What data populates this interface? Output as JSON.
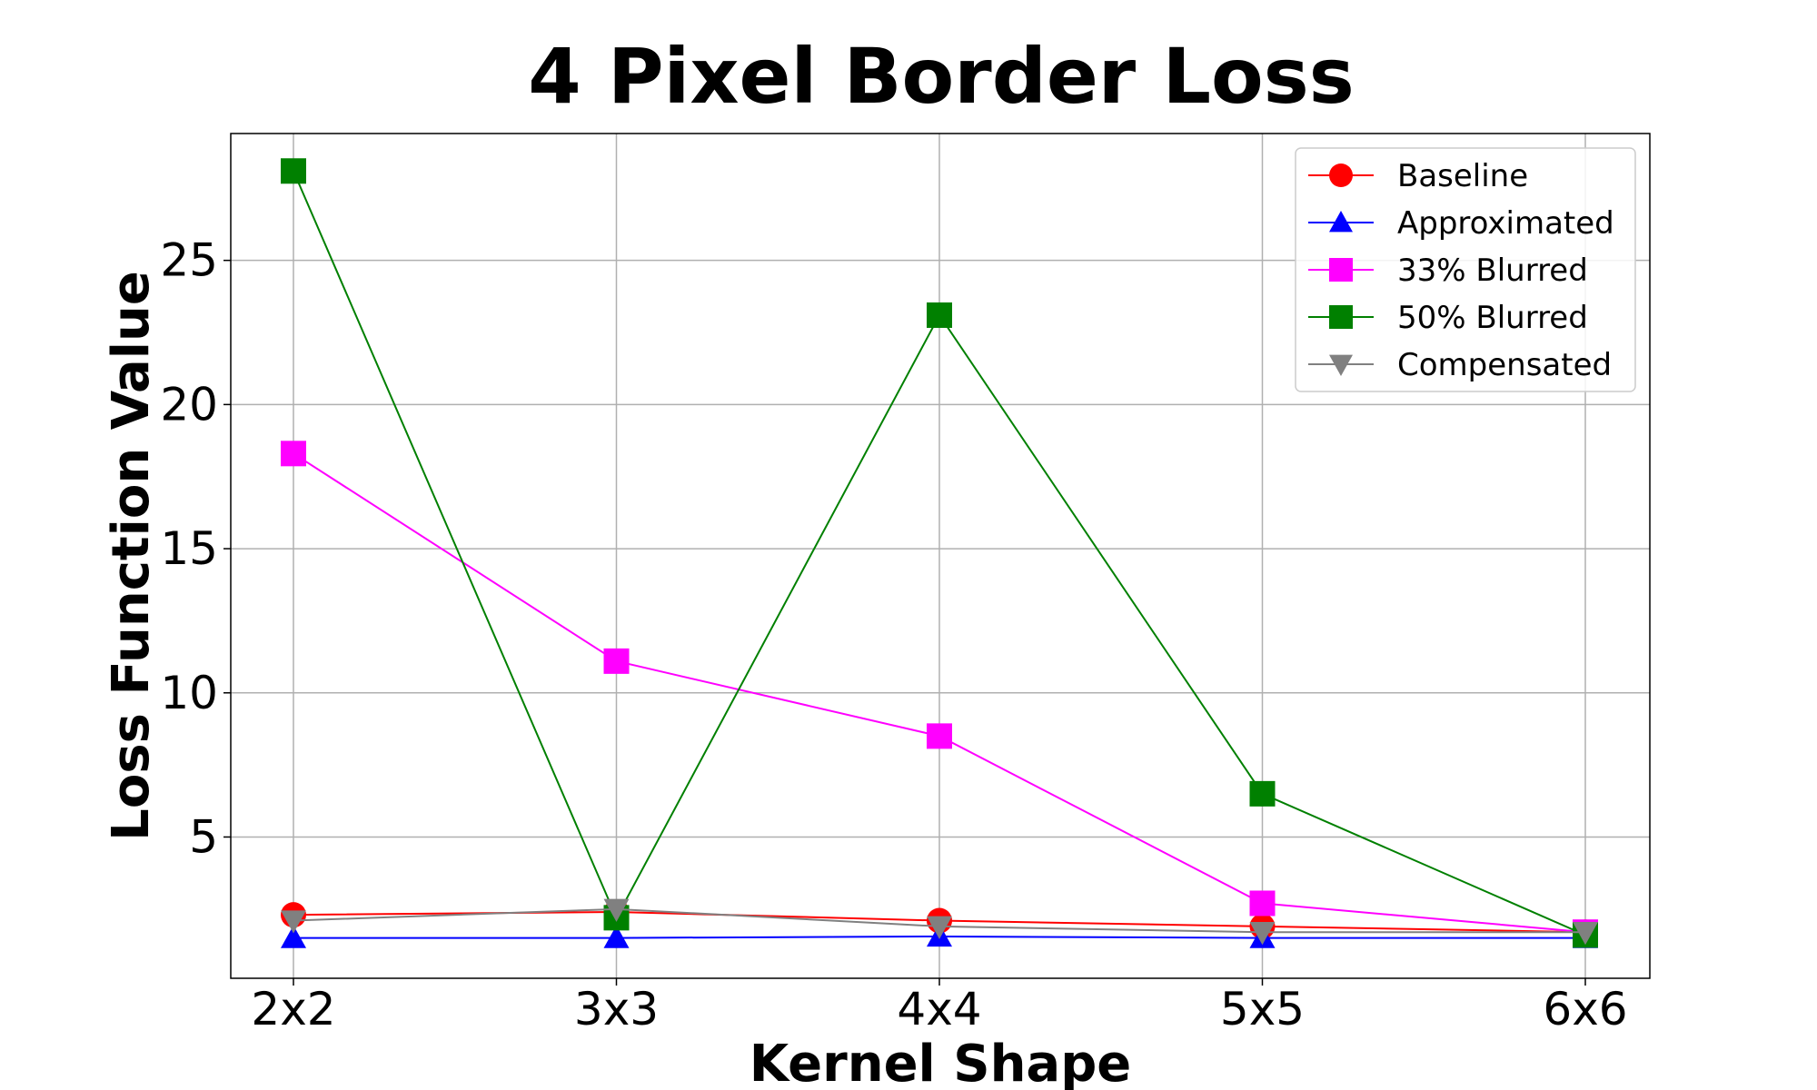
{
  "chart_data": {
    "type": "line",
    "title": "4 Pixel Border Loss",
    "xlabel": "Kernel Shape",
    "ylabel": "Loss Function Value",
    "categories": [
      "2x2",
      "3x3",
      "4x4",
      "5x5",
      "6x6"
    ],
    "yticks": [
      5,
      10,
      15,
      20,
      25
    ],
    "ylim": [
      0.1,
      29.4
    ],
    "grid": true,
    "legend_position": "top-right",
    "series": [
      {
        "name": "Baseline",
        "color": "#ff0000",
        "marker": "circle",
        "values": [
          2.3,
          2.4,
          2.1,
          1.9,
          1.7
        ]
      },
      {
        "name": "Approximated",
        "color": "#0000ff",
        "marker": "triangle-up",
        "values": [
          1.5,
          1.5,
          1.55,
          1.5,
          1.5
        ]
      },
      {
        "name": "33% Blurred",
        "color": "#ff00ff",
        "marker": "square",
        "values": [
          18.3,
          11.1,
          8.5,
          2.7,
          1.7
        ]
      },
      {
        "name": "50% Blurred",
        "color": "#008000",
        "marker": "square",
        "values": [
          28.1,
          2.2,
          23.1,
          6.5,
          1.6
        ]
      },
      {
        "name": "Compensated",
        "color": "#808080",
        "marker": "triangle-down",
        "values": [
          2.1,
          2.5,
          1.9,
          1.7,
          1.7
        ]
      }
    ]
  }
}
